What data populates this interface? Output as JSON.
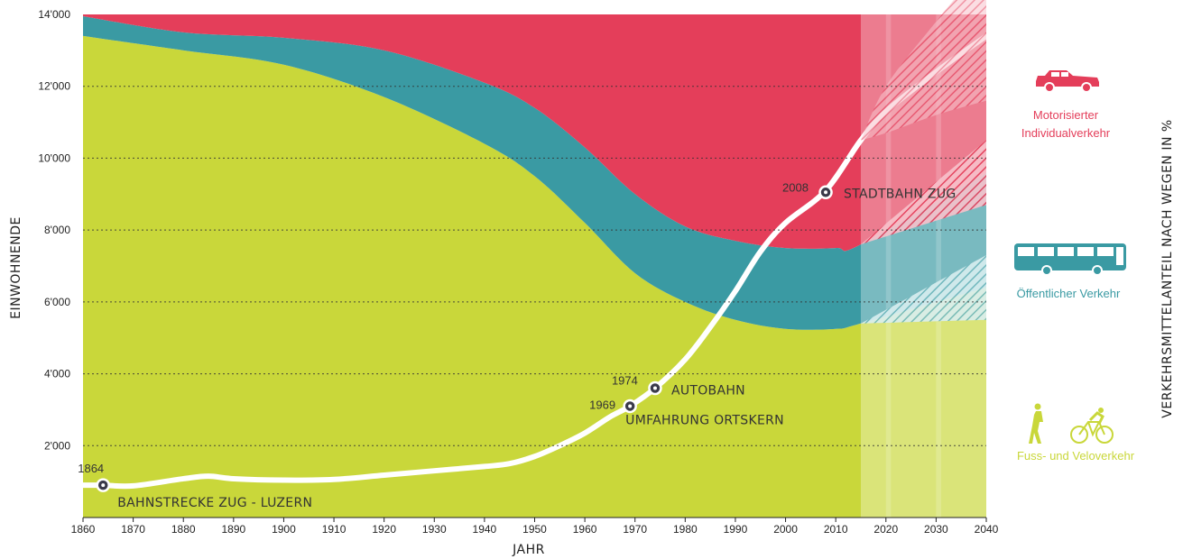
{
  "chart_data": {
    "type": "area",
    "xlabel": "JAHR",
    "ylabel": "EINWOHNENDE",
    "ylabel_right": "VERKEHRSMITTELANTEIL NACH WEGEN IN %",
    "xlim": [
      1860,
      2040
    ],
    "ylim": [
      0,
      14000
    ],
    "x_ticks": [
      1860,
      1870,
      1880,
      1890,
      1900,
      1910,
      1920,
      1930,
      1940,
      1950,
      1960,
      1970,
      1980,
      1990,
      2000,
      2010,
      2020,
      2030,
      2040
    ],
    "y_ticks": [
      {
        "value": 2000,
        "label": "2'000"
      },
      {
        "value": 4000,
        "label": "4'000"
      },
      {
        "value": 6000,
        "label": "6'000"
      },
      {
        "value": 8000,
        "label": "8'000"
      },
      {
        "value": 10000,
        "label": "10'000"
      },
      {
        "value": 12000,
        "label": "12'000"
      },
      {
        "value": 14000,
        "label": "14'000"
      }
    ],
    "grid": "horizontal dotted",
    "forecast_from": 2015,
    "stack_x": [
      1860,
      1880,
      1900,
      1920,
      1940,
      1950,
      1960,
      1970,
      1980,
      1990,
      2000,
      2010,
      2015,
      2040
    ],
    "series": [
      {
        "name": "Fuss- und Veloverkehr",
        "color": "#c9d73a",
        "top": [
          13400,
          13000,
          12600,
          11700,
          10400,
          9500,
          8200,
          6800,
          6000,
          5500,
          5250,
          5250,
          5400,
          6400
        ]
      },
      {
        "name": "Öffentlicher Verkehr",
        "color": "#3a9aa3",
        "top": [
          13950,
          13500,
          13350,
          13000,
          12100,
          11400,
          10300,
          9000,
          8100,
          7700,
          7500,
          7500,
          7600,
          9600
        ]
      },
      {
        "name": "Motorisierter Individualverkehr",
        "color": "#e43e5a",
        "top": [
          14000,
          14000,
          14000,
          14000,
          14000,
          14000,
          14000,
          14000,
          14000,
          14000,
          14000,
          14000,
          14000,
          14000
        ]
      }
    ],
    "population": {
      "name": "Einwohnende",
      "x": [
        1860,
        1864,
        1870,
        1880,
        1885,
        1890,
        1900,
        1910,
        1920,
        1930,
        1940,
        1945,
        1950,
        1955,
        1960,
        1965,
        1969,
        1974,
        1980,
        1985,
        1990,
        1995,
        2000,
        2008,
        2015,
        2020,
        2030,
        2040
      ],
      "y": [
        900,
        900,
        880,
        1080,
        1150,
        1080,
        1040,
        1060,
        1180,
        1300,
        1420,
        1500,
        1700,
        2000,
        2350,
        2800,
        3100,
        3600,
        4400,
        5300,
        6300,
        7400,
        8200,
        9100,
        10500,
        11300,
        12400,
        13400
      ]
    },
    "events": [
      {
        "year": "1864",
        "x": 1864,
        "y": 900,
        "label": "BAHNSTRECKE ZUG - LUZERN"
      },
      {
        "year": "1969",
        "x": 1969,
        "y": 3100,
        "label": "UMFAHRUNG ORTSKERN"
      },
      {
        "year": "1974",
        "x": 1974,
        "y": 3600,
        "label": "AUTOBAHN"
      },
      {
        "year": "2008",
        "x": 2008,
        "y": 9050,
        "label": "STADTBAHN ZUG"
      }
    ],
    "legend": [
      {
        "label_lines": [
          "Motorisierter",
          "Individualverkehr"
        ],
        "color": "#e43e5a",
        "icon": "car-icon"
      },
      {
        "label_lines": [
          "Öffentlicher Verkehr"
        ],
        "color": "#3a9aa3",
        "icon": "bus-icon"
      },
      {
        "label_lines": [
          "Fuss- und Veloverkehr"
        ],
        "color": "#c9d73a",
        "icon": "pedestrian-bicycle-icon"
      }
    ],
    "legend_position": "right"
  }
}
